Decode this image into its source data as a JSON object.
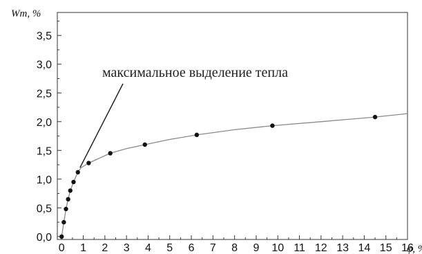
{
  "chart_data": {
    "type": "scatter",
    "title": "",
    "xlabel": "φ, %",
    "ylabel": "Wm, %",
    "xlim": [
      -0.2,
      16
    ],
    "ylim": [
      -0.05,
      3.9
    ],
    "x_ticks": [
      0,
      1,
      2,
      3,
      4,
      5,
      6,
      7,
      8,
      9,
      10,
      11,
      12,
      13,
      14,
      15,
      16
    ],
    "x_tick_labels": [
      "0",
      "1",
      "2",
      "3",
      "4",
      "5",
      "6",
      "7",
      "8",
      "9",
      "10",
      "11",
      "12",
      "13",
      "14",
      "15",
      "16"
    ],
    "y_ticks": [
      0.0,
      0.5,
      1.0,
      1.5,
      2.0,
      2.5,
      3.0,
      3.5
    ],
    "y_tick_labels": [
      "0,0",
      "0,5",
      "1,0",
      "1,5",
      "2,0",
      "2,5",
      "3,0",
      "3,5"
    ],
    "grid": false,
    "series": [
      {
        "type": "scatter",
        "x": [
          0,
          0.1,
          0.2,
          0.3,
          0.4,
          0.55,
          0.75,
          1.25,
          2.25,
          3.85,
          6.25,
          9.75,
          14.5
        ],
        "y": [
          0.0,
          0.25,
          0.48,
          0.65,
          0.8,
          0.95,
          1.12,
          1.28,
          1.45,
          1.6,
          1.77,
          1.93,
          2.08
        ]
      },
      {
        "type": "line",
        "x": [
          0,
          0.1,
          0.2,
          0.3,
          0.4,
          0.55,
          0.75,
          0.9,
          1.25,
          1.6,
          2.25,
          3.0,
          3.85,
          5.0,
          6.25,
          8.0,
          9.75,
          12.0,
          14.5,
          16.0
        ],
        "y": [
          0.0,
          0.25,
          0.48,
          0.65,
          0.8,
          0.95,
          1.12,
          1.2,
          1.28,
          1.34,
          1.45,
          1.53,
          1.6,
          1.69,
          1.77,
          1.86,
          1.93,
          2.0,
          2.08,
          2.14
        ]
      }
    ],
    "annotation": {
      "text": "максимальное выделение тепла",
      "arrow_to": [
        0.85,
        1.2
      ]
    }
  }
}
